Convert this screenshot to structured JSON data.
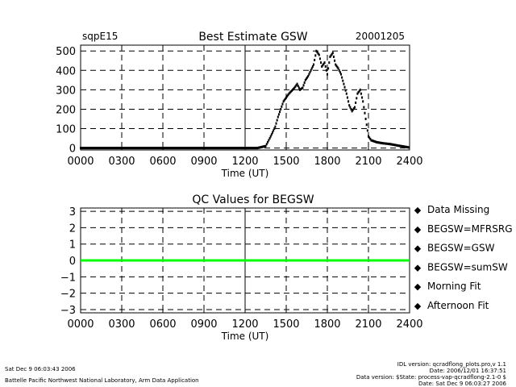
{
  "chart_data": [
    {
      "type": "line",
      "site": "sqpE15",
      "title": "Best Estimate GSW",
      "date": "20001205",
      "xlabel": "Time (UT)",
      "ylabel": "",
      "xlim": [
        0,
        2400
      ],
      "ylim": [
        -10,
        530
      ],
      "xticks": [
        "0000",
        "0300",
        "0600",
        "0900",
        "1200",
        "1500",
        "1800",
        "2100",
        "2400"
      ],
      "yticks": [
        "0",
        "100",
        "200",
        "300",
        "400",
        "500"
      ],
      "ytick_values": [
        0,
        100,
        200,
        300,
        400,
        500
      ],
      "grid": true,
      "series": [
        {
          "name": "BEGSW",
          "color": "#000000",
          "x": [
            0,
            600,
            1000,
            1290,
            1350,
            1380,
            1420,
            1440,
            1460,
            1480,
            1500,
            1520,
            1560,
            1580,
            1600,
            1620,
            1640,
            1660,
            1680,
            1700,
            1720,
            1740,
            1760,
            1780,
            1800,
            1820,
            1840,
            1860,
            1880,
            1900,
            1920,
            1940,
            1960,
            1980,
            2000,
            2020,
            2040,
            2060,
            2080,
            2100,
            2120,
            2160,
            2200,
            2260,
            2320,
            2380,
            2400
          ],
          "y": [
            0,
            0,
            0,
            0,
            10,
            50,
            110,
            160,
            200,
            240,
            260,
            280,
            310,
            330,
            300,
            310,
            350,
            370,
            400,
            430,
            500,
            480,
            420,
            440,
            380,
            470,
            490,
            430,
            410,
            380,
            330,
            280,
            220,
            190,
            210,
            280,
            300,
            240,
            150,
            60,
            40,
            30,
            25,
            20,
            12,
            5,
            2
          ]
        }
      ]
    },
    {
      "type": "line",
      "title": "QC Values for BEGSW",
      "xlabel": "Time (UT)",
      "ylabel": "",
      "xlim": [
        0,
        2400
      ],
      "ylim": [
        -3.2,
        3.2
      ],
      "xticks": [
        "0000",
        "0300",
        "0600",
        "0900",
        "1200",
        "1500",
        "1800",
        "2100",
        "2400"
      ],
      "yticks": [
        "3",
        "2",
        "1",
        "0",
        "−1",
        "−2",
        "−3"
      ],
      "ytick_values": [
        3,
        2,
        1,
        0,
        -1,
        -2,
        -3
      ],
      "grid": true,
      "series": [
        {
          "name": "QC",
          "color": "#00ff00",
          "x": [
            0,
            2400
          ],
          "y": [
            0,
            0
          ]
        }
      ],
      "legend": {
        "placement": "right",
        "entries": [
          {
            "label": "Data Missing",
            "color": "#000000"
          },
          {
            "label": "BEGSW=MFRSRG",
            "color": "#0000ff"
          },
          {
            "label": "BEGSW=GSW",
            "color": "#ff0000"
          },
          {
            "label": "BEGSW=sumSW",
            "color": "#00ff00"
          },
          {
            "label": "Morning Fit",
            "color": "#ff8800"
          },
          {
            "label": "Afternoon Fit",
            "color": "#00ffff"
          }
        ]
      }
    }
  ],
  "footer": {
    "left_line1": "Sat Dec  9 06:03:43 2006",
    "left_line2": "Battelle Pacific Northwest National Laboratory, Arm Data Application",
    "right_line1": "IDL version: qcradflong_plots.pro,v 1.1",
    "right_line2": "Date: 2006/12/01 16:37:51",
    "right_line3": "Data version: $State: process-vap-qcradflong-2.1-0 $",
    "right_line4": "Date: Sat Dec  9 06:03:27 2006"
  }
}
